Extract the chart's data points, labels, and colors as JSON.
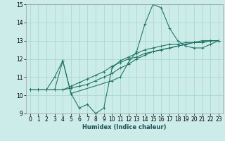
{
  "xlabel": "Humidex (Indice chaleur)",
  "xlim": [
    -0.5,
    23.5
  ],
  "ylim": [
    9,
    15
  ],
  "yticks": [
    9,
    10,
    11,
    12,
    13,
    14,
    15
  ],
  "xticks": [
    0,
    1,
    2,
    3,
    4,
    5,
    6,
    7,
    8,
    9,
    10,
    11,
    12,
    13,
    14,
    15,
    16,
    17,
    18,
    19,
    20,
    21,
    22,
    23
  ],
  "bg_color": "#ccecea",
  "grid_color": "#aad8d4",
  "line_color": "#1a7060",
  "lines": [
    {
      "x": [
        0,
        1,
        2,
        3,
        4,
        5,
        10,
        11,
        12,
        13,
        14,
        15,
        16,
        17,
        18,
        19,
        20,
        21,
        22,
        23
      ],
      "y": [
        10.3,
        10.3,
        10.3,
        11.0,
        11.9,
        10.1,
        10.8,
        11.0,
        11.8,
        12.4,
        13.9,
        15.0,
        14.8,
        13.7,
        13.0,
        12.7,
        12.6,
        12.6,
        12.8,
        13.0
      ]
    },
    {
      "x": [
        0,
        1,
        2,
        3,
        4,
        5,
        6,
        7,
        8,
        9,
        10,
        11,
        12,
        13,
        14,
        15,
        16,
        17,
        18,
        19,
        20,
        21,
        22,
        23
      ],
      "y": [
        10.3,
        10.3,
        10.3,
        10.3,
        11.9,
        10.1,
        9.3,
        9.5,
        9.0,
        9.3,
        11.5,
        11.9,
        12.1,
        12.3,
        12.5,
        12.6,
        12.7,
        12.8,
        12.8,
        12.9,
        12.9,
        13.0,
        13.0,
        13.0
      ]
    },
    {
      "x": [
        0,
        1,
        2,
        3,
        4,
        5,
        6,
        7,
        8,
        9,
        10,
        11,
        12,
        13,
        14,
        15,
        16,
        17,
        18,
        19,
        20,
        21,
        22,
        23
      ],
      "y": [
        10.3,
        10.3,
        10.3,
        10.3,
        10.3,
        10.5,
        10.7,
        10.9,
        11.1,
        11.3,
        11.6,
        11.8,
        12.0,
        12.1,
        12.3,
        12.4,
        12.5,
        12.6,
        12.7,
        12.8,
        12.9,
        12.9,
        13.0,
        13.0
      ]
    },
    {
      "x": [
        0,
        1,
        2,
        3,
        4,
        5,
        6,
        7,
        8,
        9,
        10,
        11,
        12,
        13,
        14,
        15,
        16,
        17,
        18,
        19,
        20,
        21,
        22,
        23
      ],
      "y": [
        10.3,
        10.3,
        10.3,
        10.3,
        10.3,
        10.4,
        10.5,
        10.6,
        10.8,
        11.0,
        11.2,
        11.5,
        11.7,
        12.0,
        12.2,
        12.4,
        12.5,
        12.6,
        12.7,
        12.8,
        12.9,
        12.9,
        13.0,
        13.0
      ]
    }
  ]
}
